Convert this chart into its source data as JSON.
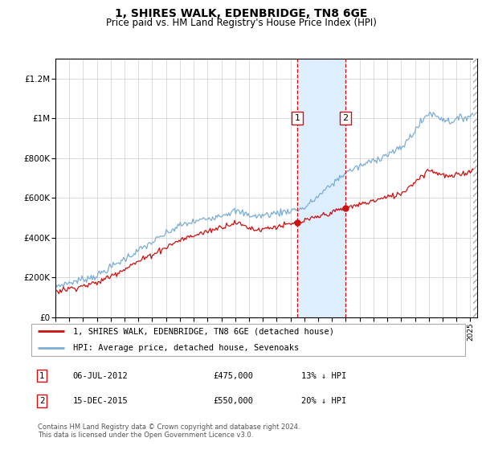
{
  "title": "1, SHIRES WALK, EDENBRIDGE, TN8 6GE",
  "subtitle": "Price paid vs. HM Land Registry's House Price Index (HPI)",
  "legend_line1": "1, SHIRES WALK, EDENBRIDGE, TN8 6GE (detached house)",
  "legend_line2": "HPI: Average price, detached house, Sevenoaks",
  "annotation1": {
    "label": "1",
    "date": "06-JUL-2012",
    "price": "£475,000",
    "hpi": "13% ↓ HPI"
  },
  "annotation2": {
    "label": "2",
    "date": "15-DEC-2015",
    "price": "£550,000",
    "hpi": "20% ↓ HPI"
  },
  "footer": "Contains HM Land Registry data © Crown copyright and database right 2024.\nThis data is licensed under the Open Government Licence v3.0.",
  "hpi_color": "#7aadd4",
  "price_color": "#cc1111",
  "annotation_color": "#cc1111",
  "shaded_color": "#ddeeff",
  "ylim": [
    0,
    1300000
  ],
  "yticks": [
    0,
    200000,
    400000,
    600000,
    800000,
    1000000,
    1200000
  ],
  "ytick_labels": [
    "£0",
    "£200K",
    "£400K",
    "£600K",
    "£800K",
    "£1M",
    "£1.2M"
  ],
  "sale1_t": 2012.5,
  "sale1_p": 475000,
  "sale2_t": 2015.958,
  "sale2_p": 550000,
  "xmin": 1995,
  "xmax": 2025.5
}
